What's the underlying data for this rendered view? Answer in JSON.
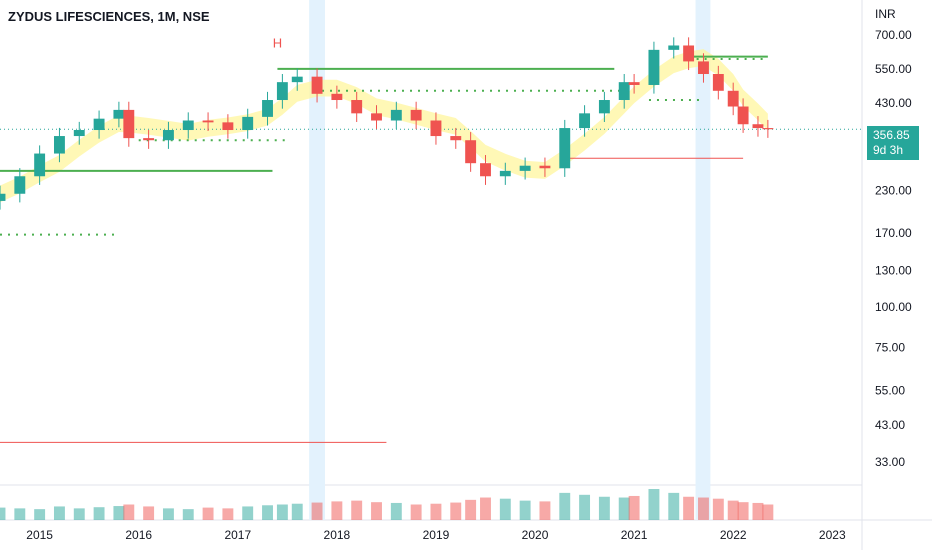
{
  "header": {
    "title": "ZYDUS LIFESCIENCES, 1M, NSE"
  },
  "price_axis": {
    "unit": "INR"
  },
  "last_price": {
    "value": "356.85",
    "countdown": "9d 3h"
  },
  "colors": {
    "up": "#26a69a",
    "down": "#ef5350",
    "highlight": "#e3f2fd",
    "ribbon_bull": "#fff59d",
    "ribbon_bear": "#90caf9",
    "zone": "#e8f5e9",
    "level_green": "#4caf50",
    "level_red": "#ef5350"
  },
  "chart_data": {
    "type": "candlestick",
    "y_scale": "log",
    "y_ticks": [
      "700.00",
      "550.00",
      "430.00",
      "356.85",
      "230.00",
      "170.00",
      "130.00",
      "100.00",
      "75.00",
      "55.00",
      "43.00",
      "33.00"
    ],
    "x_ticks": [
      "2015",
      "2016",
      "2017",
      "2018",
      "2019",
      "2020",
      "2021",
      "2022",
      "2023"
    ],
    "x_range": [
      2014.6,
      2023.3
    ],
    "annotations": [
      {
        "text": "H",
        "x": 2017.4,
        "y": 640
      }
    ],
    "highlight_bands": [
      [
        2017.72,
        2017.88
      ],
      [
        2021.62,
        2021.77
      ]
    ],
    "horizontal_levels": [
      {
        "color": "green",
        "y": 550,
        "x_start": 2017.4,
        "x_end": 2020.8
      },
      {
        "color": "green",
        "y": 265,
        "x_start": 2014.6,
        "x_end": 2017.35
      },
      {
        "color": "green",
        "y": 600,
        "x_start": 2021.55,
        "x_end": 2022.35
      },
      {
        "color": "red",
        "y": 290,
        "x_start": 2020.3,
        "x_end": 2022.1
      },
      {
        "color": "red",
        "y": 38,
        "x_start": 2014.6,
        "x_end": 2018.5
      }
    ],
    "dotted_levels": [
      {
        "y": 168,
        "x_start": 2014.6,
        "x_end": 2015.8
      },
      {
        "y": 330,
        "x_start": 2016.0,
        "x_end": 2017.5
      },
      {
        "y": 470,
        "x_start": 2017.85,
        "x_end": 2020.9
      },
      {
        "y": 590,
        "x_start": 2021.55,
        "x_end": 2022.35
      },
      {
        "y": 440,
        "x_start": 2021.15,
        "x_end": 2021.7
      }
    ],
    "series": [
      {
        "name": "close",
        "x": [
          2014.6,
          2014.8,
          2015.0,
          2015.2,
          2015.4,
          2015.6,
          2015.8,
          2015.9,
          2016.1,
          2016.3,
          2016.5,
          2016.7,
          2016.9,
          2017.1,
          2017.3,
          2017.45,
          2017.6,
          2017.8,
          2018.0,
          2018.2,
          2018.4,
          2018.6,
          2018.8,
          2019.0,
          2019.2,
          2019.35,
          2019.5,
          2019.7,
          2019.9,
          2020.1,
          2020.3,
          2020.5,
          2020.7,
          2020.9,
          2021.0,
          2021.2,
          2021.4,
          2021.55,
          2021.7,
          2021.85,
          2022.0,
          2022.1,
          2022.25,
          2022.35
        ],
        "values": [
          225,
          255,
          300,
          340,
          355,
          385,
          410,
          335,
          330,
          355,
          380,
          375,
          355,
          390,
          440,
          500,
          520,
          460,
          440,
          400,
          380,
          410,
          380,
          340,
          330,
          280,
          255,
          265,
          275,
          270,
          360,
          400,
          440,
          500,
          490,
          630,
          650,
          580,
          530,
          470,
          420,
          370,
          360,
          357
        ]
      }
    ],
    "volume": [
      32,
      30,
      28,
      35,
      30,
      33,
      36,
      40,
      35,
      30,
      28,
      32,
      30,
      35,
      38,
      40,
      42,
      45,
      48,
      50,
      46,
      44,
      40,
      42,
      45,
      52,
      58,
      55,
      50,
      48,
      70,
      65,
      60,
      58,
      62,
      80,
      70,
      60,
      58,
      55,
      50,
      46,
      44,
      40
    ]
  }
}
